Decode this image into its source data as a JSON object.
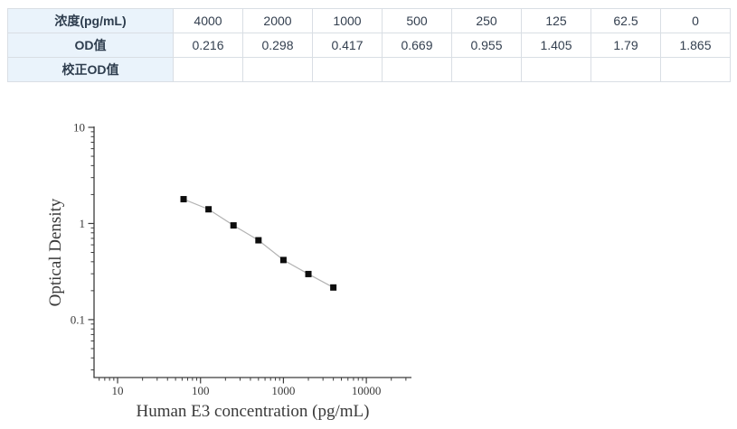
{
  "table": {
    "header_bg": "#eaf3fb",
    "border_color": "#d9dee4",
    "text_color": "#333f4f",
    "rows": [
      {
        "header": "浓度(pg/mL)",
        "cells": [
          "4000",
          "2000",
          "1000",
          "500",
          "250",
          "125",
          "62.5",
          "0"
        ]
      },
      {
        "header": "OD值",
        "cells": [
          "0.216",
          "0.298",
          "0.417",
          "0.669",
          "0.955",
          "1.405",
          "1.79",
          "1.865"
        ]
      },
      {
        "header": "校正OD值",
        "cells": [
          "",
          "",
          "",
          "",
          "",
          "",
          "",
          ""
        ]
      }
    ]
  },
  "chart_data": {
    "type": "scatter",
    "x": [
      62.5,
      125,
      250,
      500,
      1000,
      2000,
      4000
    ],
    "y": [
      1.79,
      1.405,
      0.955,
      0.669,
      0.417,
      0.298,
      0.216
    ],
    "title": "",
    "xlabel": "Human E3 concentration (pg/mL)",
    "ylabel": "Optical Density",
    "xscale": "log",
    "yscale": "log",
    "xlim": [
      5.2,
      35000
    ],
    "ylim": [
      0.025,
      10
    ],
    "xticks": {
      "values": [
        10,
        100,
        1000,
        10000
      ],
      "labels": [
        "10",
        "100",
        "1000",
        "10000"
      ]
    },
    "yticks": {
      "values": [
        10,
        1,
        0.1
      ],
      "labels": [
        "10",
        "1",
        "0.1"
      ]
    },
    "grid": false,
    "legend": false,
    "marker": "filled-square",
    "marker_size_px": 7,
    "marker_color": "#0d0d0d",
    "line_color": "#b3b3b3",
    "axis_color": "#3c3c3c",
    "text_color": "#3a3a3a"
  }
}
